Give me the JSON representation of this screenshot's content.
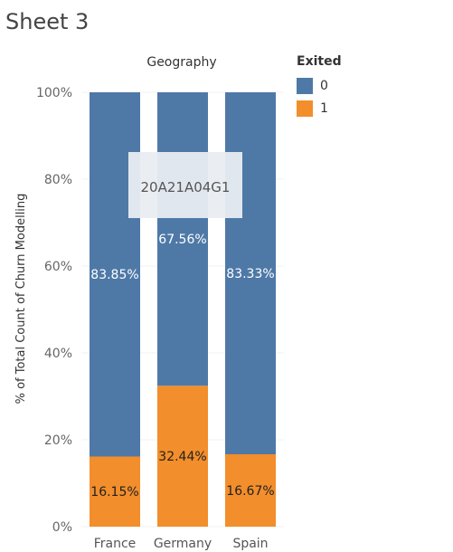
{
  "sheet_title": "Sheet 3",
  "watermark": "20A21A04G1",
  "colors": {
    "exited_0": "#4e79a7",
    "exited_1": "#f28e2b"
  },
  "chart_data": {
    "type": "bar",
    "stacked": true,
    "column_header": "Geography",
    "ylabel": "% of Total Count of Churn Modelling",
    "ylim": [
      0,
      100
    ],
    "yticks": [
      "0%",
      "20%",
      "40%",
      "60%",
      "80%",
      "100%"
    ],
    "categories": [
      "France",
      "Germany",
      "Spain"
    ],
    "legend": {
      "title": "Exited",
      "position": "top-right"
    },
    "series": [
      {
        "name": "1",
        "color": "#f28e2b",
        "values": [
          16.15,
          32.44,
          16.67
        ],
        "labels": [
          "16.15%",
          "32.44%",
          "16.67%"
        ]
      },
      {
        "name": "0",
        "color": "#4e79a7",
        "values": [
          83.85,
          67.56,
          83.33
        ],
        "labels": [
          "83.85%",
          "67.56%",
          "83.33%"
        ]
      }
    ]
  }
}
